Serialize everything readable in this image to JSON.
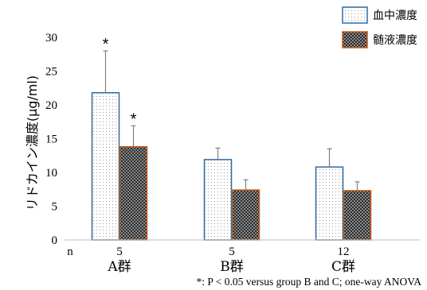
{
  "chart_data": {
    "type": "bar",
    "ylabel": "リドカイン濃度(μg/ml)",
    "ylim": [
      0,
      30
    ],
    "yticks": [
      0,
      5,
      10,
      15,
      20,
      25,
      30
    ],
    "categories": [
      "A群",
      "B群",
      "C群"
    ],
    "n_label": "n",
    "n_values": [
      "5",
      "5",
      "12"
    ],
    "series": [
      {
        "name": "血中濃度",
        "values": [
          21.8,
          11.9,
          10.8
        ],
        "errors": [
          6.2,
          1.7,
          2.7
        ],
        "significant": [
          true,
          false,
          false
        ],
        "color": "#2e6da4",
        "pattern": "dots"
      },
      {
        "name": "髄液濃度",
        "values": [
          13.8,
          7.4,
          7.3
        ],
        "errors": [
          3.1,
          1.5,
          1.3
        ],
        "significant": [
          true,
          false,
          false
        ],
        "color": "#c55a11",
        "pattern": "checker"
      }
    ],
    "significance_marker": "*",
    "legend_position": "top-right",
    "footnote": "*: P < 0.05 versus group B and C; one-way ANOVA"
  }
}
